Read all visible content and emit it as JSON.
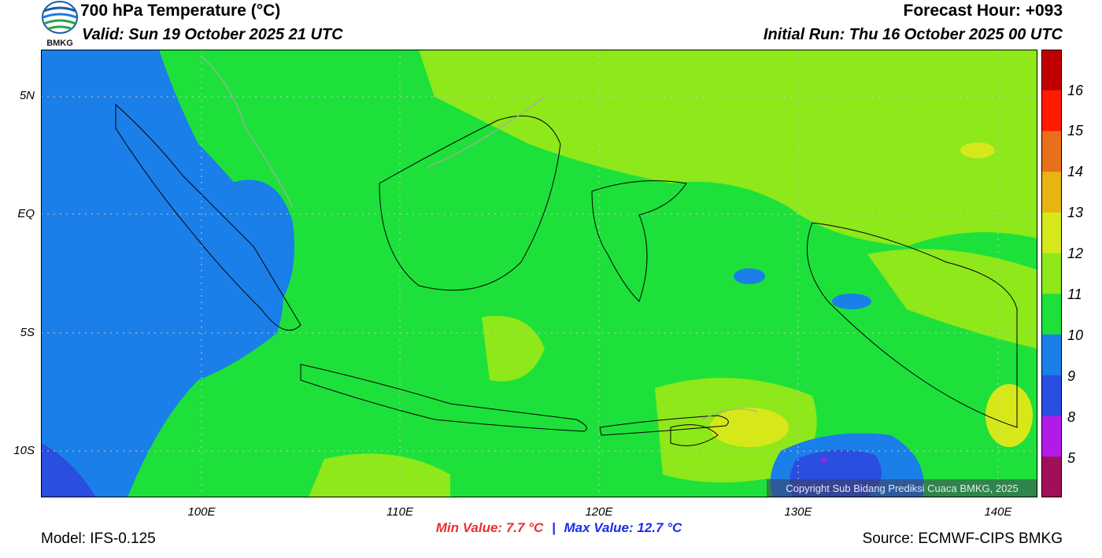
{
  "header": {
    "title": "700 hPa Temperature (°C)",
    "valid": "Valid: Sun 19 October 2025 21 UTC",
    "forecast_hour": "Forecast Hour: +093",
    "initial_run": "Initial Run: Thu 16 October 2025 00 UTC",
    "logo_text": "BMKG"
  },
  "axes": {
    "y_labels": [
      "5N",
      "EQ",
      "5S",
      "10S"
    ],
    "x_labels": [
      "100E",
      "110E",
      "120E",
      "130E",
      "140E"
    ]
  },
  "colorbar": {
    "labels": [
      "16",
      "15",
      "14",
      "13",
      "12",
      "11",
      "10",
      "9",
      "8",
      "5"
    ],
    "colors": [
      "#c00000",
      "#ff1a00",
      "#e8701a",
      "#e8b412",
      "#d6e81a",
      "#8ee81a",
      "#1de13a",
      "#1a7fe8",
      "#2a4ee0",
      "#b21ae8",
      "#a0105a"
    ]
  },
  "stats": {
    "min_label": "Min Value: 7.7 °C",
    "separator": "|",
    "max_label": "Max Value: 12.7 °C"
  },
  "footer": {
    "model": "Model: IFS-0.125",
    "source": "Source: ECMWF-CIPS BMKG",
    "copyright": "Copyright Sub Bidang Prediksi Cuaca BMKG, 2025"
  },
  "colors": {
    "green_10_11": "#1de13a",
    "lightgreen_11_12": "#8ee81a",
    "blue_9_10": "#1a7fe8",
    "darkblue_8_9": "#2a4ee0",
    "yellow_12_13": "#d6e81a",
    "min_color": "#e83030",
    "max_color": "#1a2ee8"
  }
}
